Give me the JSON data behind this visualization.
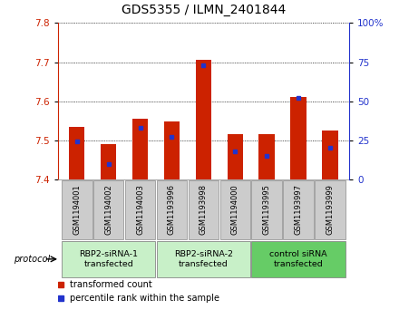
{
  "title": "GDS5355 / ILMN_2401844",
  "samples": [
    "GSM1194001",
    "GSM1194002",
    "GSM1194003",
    "GSM1193996",
    "GSM1193998",
    "GSM1194000",
    "GSM1193995",
    "GSM1193997",
    "GSM1193999"
  ],
  "red_values": [
    7.535,
    7.49,
    7.555,
    7.548,
    7.705,
    7.515,
    7.515,
    7.61,
    7.525
  ],
  "blue_values": [
    24,
    10,
    33,
    27,
    73,
    18,
    15,
    52,
    20
  ],
  "ylim_left": [
    7.4,
    7.8
  ],
  "ylim_right": [
    0,
    100
  ],
  "yticks_left": [
    7.4,
    7.5,
    7.6,
    7.7,
    7.8
  ],
  "yticks_right": [
    0,
    25,
    50,
    75,
    100
  ],
  "ytick_labels_right": [
    "0",
    "25",
    "50",
    "75",
    "100%"
  ],
  "groups": [
    {
      "label": "RBP2-siRNA-1\ntransfected",
      "start": 0,
      "end": 3
    },
    {
      "label": "RBP2-siRNA-2\ntransfected",
      "start": 3,
      "end": 6
    },
    {
      "label": "control siRNA\ntransfected",
      "start": 6,
      "end": 9
    }
  ],
  "group_colors": [
    "#c8f0c8",
    "#c8f0c8",
    "#66cc66"
  ],
  "protocol_label": "protocol",
  "red_color": "#cc2200",
  "blue_color": "#2233cc",
  "bar_width": 0.5,
  "sample_box_color": "#cccccc",
  "sample_box_edge": "#999999",
  "plot_bg": "#ffffff",
  "title_fontsize": 10,
  "legend_red": "transformed count",
  "legend_blue": "percentile rank within the sample"
}
